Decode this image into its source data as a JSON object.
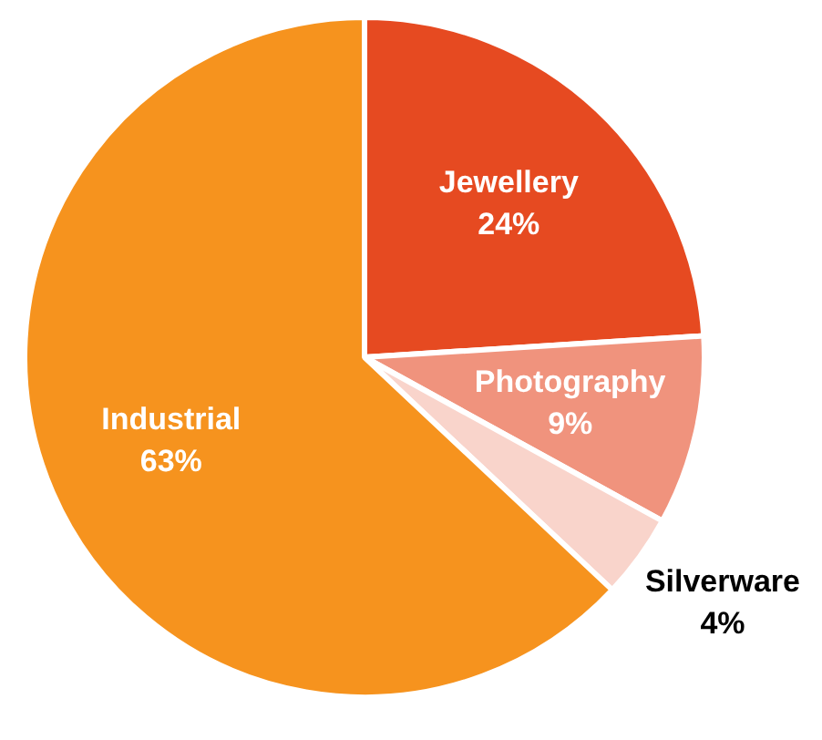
{
  "chart_data": {
    "type": "pie",
    "categories": [
      "Jewellery",
      "Photography",
      "Silverware",
      "Industrial"
    ],
    "values": [
      24,
      9,
      4,
      63
    ],
    "value_labels": [
      "24%",
      "9%",
      "4%",
      "63%"
    ],
    "colors": [
      "#e64a21",
      "#f0937d",
      "#f9d4cb",
      "#f6931e"
    ],
    "legend": false
  }
}
